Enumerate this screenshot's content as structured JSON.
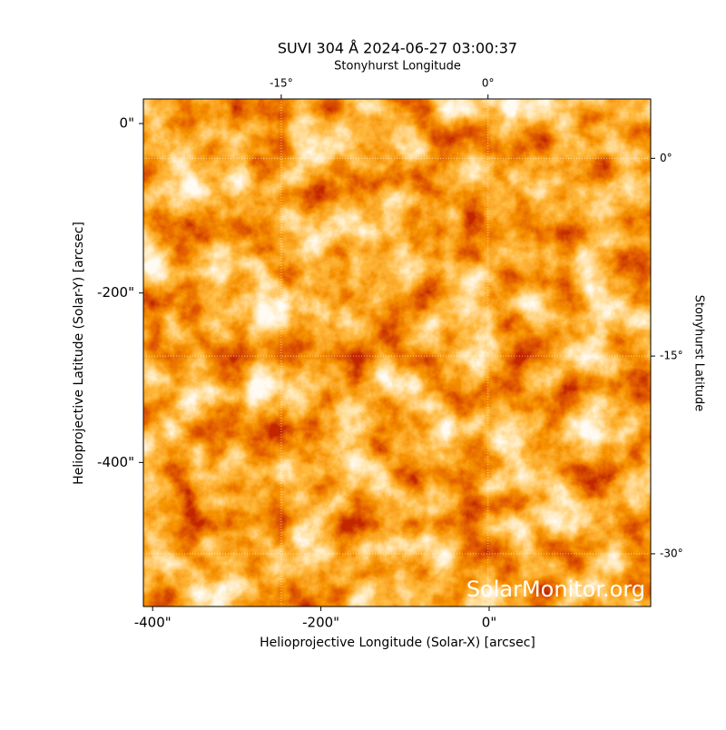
{
  "chart_data": {
    "type": "image",
    "title": "SUVI 304 Å 2024-06-27 03:00:37",
    "xlabel": "Helioprojective Longitude (Solar-X) [arcsec]",
    "ylabel": "Helioprojective Latitude (Solar-Y) [arcsec]",
    "x2label": "Stonyhurst Longitude",
    "y2label": "Stonyhurst Latitude",
    "watermark": "SolarMonitor.org",
    "xlim": [
      -411,
      192
    ],
    "ylim": [
      -570,
      29
    ],
    "xticks": [
      {
        "value": -400,
        "label": "-400\""
      },
      {
        "value": -200,
        "label": "-200\""
      },
      {
        "value": 0,
        "label": "0\""
      }
    ],
    "yticks": [
      {
        "value": 0,
        "label": "0\""
      },
      {
        "value": -200,
        "label": "-200\""
      },
      {
        "value": -400,
        "label": "-400\""
      }
    ],
    "x2lim": [
      -25,
      11.8
    ],
    "x2ticks": [
      {
        "value": -15,
        "label": "-15°"
      },
      {
        "value": 0,
        "label": "0°"
      }
    ],
    "y2lim": [
      -34,
      4.5
    ],
    "y2ticks": [
      {
        "value": 0,
        "label": "0°"
      },
      {
        "value": -15,
        "label": "-15°"
      },
      {
        "value": -30,
        "label": "-30°"
      }
    ],
    "grid": true
  }
}
